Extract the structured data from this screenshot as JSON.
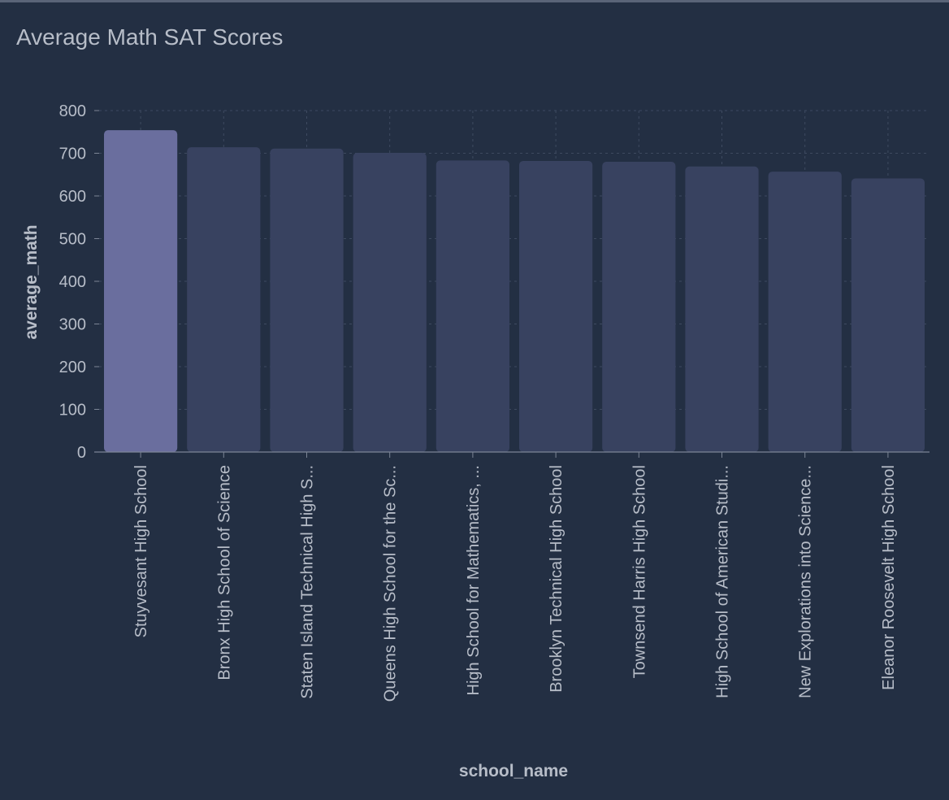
{
  "chart_title": "Average Math SAT Scores",
  "colors": {
    "background": "#232f43",
    "bar": "#384260",
    "bar_highlight": "#6a6e9e",
    "grid": "#3e4a60",
    "axis": "#7c8596",
    "text": "#b7bdc8"
  },
  "chart_data": {
    "type": "bar",
    "title": "Average Math SAT Scores",
    "xlabel": "school_name",
    "ylabel": "average_math",
    "ylim": [
      0,
      800
    ],
    "yticks": [
      0,
      100,
      200,
      300,
      400,
      500,
      600,
      700,
      800
    ],
    "grid": true,
    "highlight_index": 0,
    "categories": [
      "Stuyvesant High School",
      "Bronx High School of Science",
      "Staten Island Technical High S...",
      "Queens High School for the Sc...",
      "High School for Mathematics, ...",
      "Brooklyn Technical High School",
      "Townsend Harris High School",
      "High School of American Studi...",
      "New Explorations into Science...",
      "Eleanor Roosevelt High School"
    ],
    "values": [
      754,
      714,
      711,
      701,
      683,
      682,
      680,
      669,
      657,
      641
    ]
  }
}
